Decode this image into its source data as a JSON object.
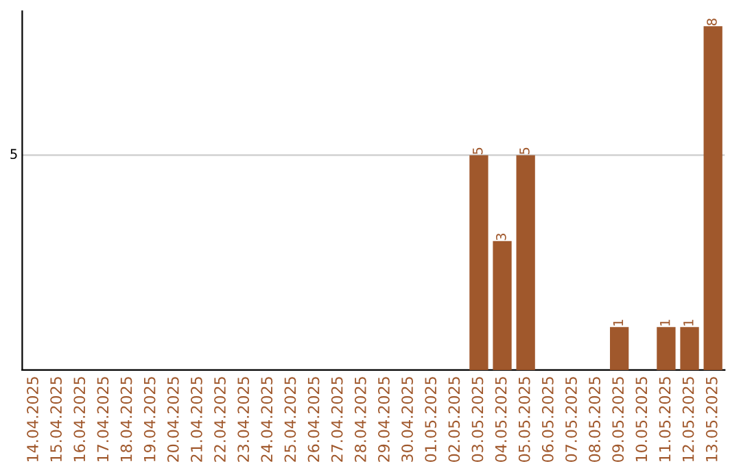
{
  "chart_data": {
    "type": "bar",
    "categories": [
      "14.04.2025",
      "15.04.2025",
      "16.04.2025",
      "17.04.2025",
      "18.04.2025",
      "19.04.2025",
      "20.04.2025",
      "21.04.2025",
      "22.04.2025",
      "23.04.2025",
      "24.04.2025",
      "25.04.2025",
      "26.04.2025",
      "27.04.2025",
      "28.04.2025",
      "29.04.2025",
      "30.04.2025",
      "01.05.2025",
      "02.05.2025",
      "03.05.2025",
      "04.05.2025",
      "05.05.2025",
      "06.05.2025",
      "07.05.2025",
      "08.05.2025",
      "09.05.2025",
      "10.05.2025",
      "11.05.2025",
      "12.05.2025",
      "13.05.2025"
    ],
    "values": [
      null,
      null,
      null,
      null,
      null,
      null,
      null,
      null,
      null,
      null,
      null,
      null,
      null,
      null,
      null,
      null,
      null,
      null,
      null,
      5,
      3,
      5,
      null,
      null,
      null,
      1,
      null,
      1,
      1,
      8
    ],
    "value_labels": [
      null,
      null,
      null,
      null,
      null,
      null,
      null,
      null,
      null,
      null,
      null,
      null,
      null,
      null,
      null,
      null,
      null,
      null,
      null,
      "5",
      "3",
      "5",
      null,
      null,
      null,
      "1",
      null,
      "1",
      "1",
      "8"
    ],
    "color": "#a0582c",
    "ylim": [
      0,
      8.35
    ],
    "ref_lines": [
      {
        "axis": "y",
        "value": 5,
        "label": "5",
        "color": "#cccccc"
      }
    ]
  }
}
